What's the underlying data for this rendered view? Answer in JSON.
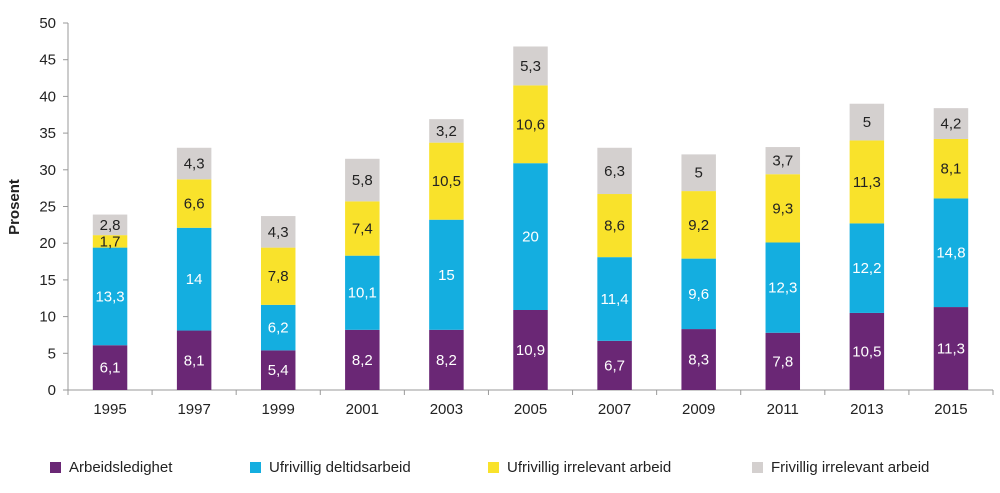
{
  "chart_data": {
    "type": "bar",
    "stacked": true,
    "categories": [
      "1995",
      "1997",
      "1999",
      "2001",
      "2003",
      "2005",
      "2007",
      "2009",
      "2011",
      "2013",
      "2015"
    ],
    "series": [
      {
        "name": "Arbeidsledighet",
        "color": "#6a2775",
        "values": [
          6.1,
          8.1,
          5.4,
          8.2,
          8.2,
          10.9,
          6.7,
          8.3,
          7.8,
          10.5,
          11.3
        ],
        "labels": [
          "6,1",
          "8,1",
          "5,4",
          "8,2",
          "8,2",
          "10,9",
          "6,7",
          "8,3",
          "7,8",
          "10,5",
          "11,3"
        ],
        "label_color": "#ffffff"
      },
      {
        "name": "Ufrivillig deltidsarbeid",
        "color": "#14aee0",
        "values": [
          13.3,
          14,
          6.2,
          10.1,
          15,
          20,
          11.4,
          9.6,
          12.3,
          12.2,
          14.8
        ],
        "labels": [
          "13,3",
          "14",
          "6,2",
          "10,1",
          "15",
          "20",
          "11,4",
          "9,6",
          "12,3",
          "12,2",
          "14,8"
        ],
        "label_color": "#ffffff"
      },
      {
        "name": "Ufrivillig irrelevant arbeid",
        "color": "#f9e22b",
        "values": [
          1.7,
          6.6,
          7.8,
          7.4,
          10.5,
          10.6,
          8.6,
          9.2,
          9.3,
          11.3,
          8.1
        ],
        "labels": [
          "1,7",
          "6,6",
          "7,8",
          "7,4",
          "10,5",
          "10,6",
          "8,6",
          "9,2",
          "9,3",
          "11,3",
          "8,1"
        ],
        "label_color": "#222222"
      },
      {
        "name": "Frivillig irrelevant arbeid",
        "color": "#d4d0cf",
        "values": [
          2.8,
          4.3,
          4.3,
          5.8,
          3.2,
          5.3,
          6.3,
          5,
          3.7,
          5,
          4.2
        ],
        "labels": [
          "2,8",
          "4,3",
          "4,3",
          "5,8",
          "3,2",
          "5,3",
          "6,3",
          "5",
          "3,7",
          "5",
          "4,2"
        ],
        "label_color": "#222222"
      }
    ],
    "title": "",
    "xlabel": "",
    "ylabel": "Prosent",
    "ylim": [
      0,
      50
    ],
    "yticks": [
      "0",
      "5",
      "10",
      "15",
      "20",
      "25",
      "30",
      "35",
      "40",
      "45",
      "50"
    ],
    "grid": false,
    "legend": "bottom"
  }
}
